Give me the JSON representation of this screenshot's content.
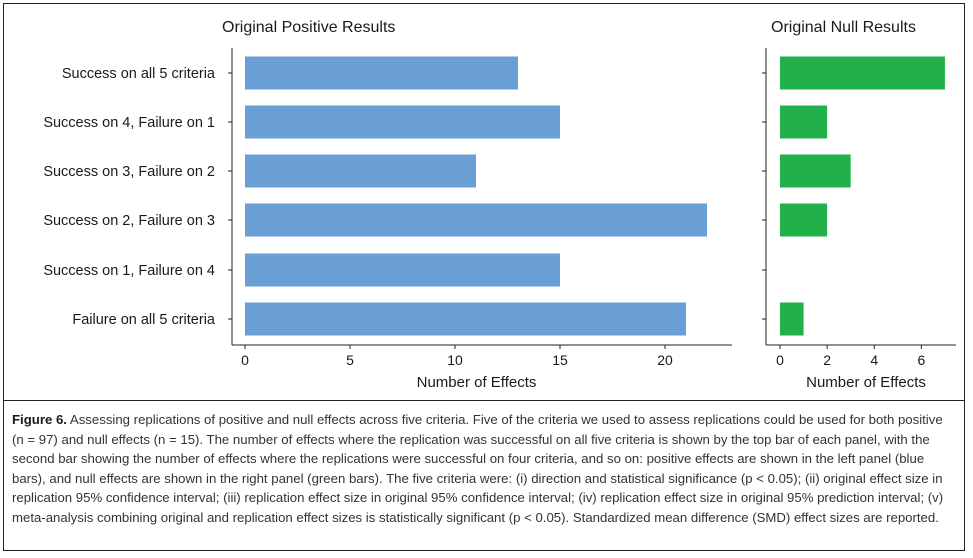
{
  "chart_data": [
    {
      "type": "bar",
      "orientation": "horizontal",
      "title": "Original Positive Results",
      "xlabel": "Number of Effects",
      "categories": [
        "Success on all 5 criteria",
        "Success on 4, Failure on 1",
        "Success on 3, Failure on 2",
        "Success on 2, Failure on 3",
        "Success on 1, Failure on 4",
        "Failure on all 5 criteria"
      ],
      "values": [
        13,
        15,
        11,
        22,
        15,
        21
      ],
      "xlim": [
        0,
        23
      ],
      "xticks": [
        0,
        5,
        10,
        15,
        20
      ],
      "color": "#6a9fd6",
      "grid": false
    },
    {
      "type": "bar",
      "orientation": "horizontal",
      "title": "Original Null Results",
      "xlabel": "Number of Effects",
      "categories": [
        "Success on all 5 criteria",
        "Success on 4, Failure on 1",
        "Success on 3, Failure on 2",
        "Success on 2, Failure on 3",
        "Success on 1, Failure on 4",
        "Failure on all 5 criteria"
      ],
      "values": [
        7,
        2,
        3,
        2,
        0,
        1
      ],
      "xlim": [
        0,
        7.3
      ],
      "xticks": [
        0,
        2,
        4,
        6
      ],
      "color": "#22b04b",
      "grid": false
    }
  ],
  "caption": {
    "label": "Figure 6.",
    "text": " Assessing replications of positive and null effects across five criteria. Five of the criteria we used to assess replications could be used for both positive (n = 97) and null effects (n = 15). The number of effects where the replication was successful on all five criteria is shown by the top bar of each panel, with the second bar showing the number of effects where the replications were successful on four criteria, and so on: positive effects are shown in the left panel (blue bars), and null effects are shown in the right panel (green bars). The five criteria were: (i) direction and statistical significance (p < 0.05); (ii) original effect size in replication 95% confidence interval; (iii) replication effect size in original 95% confidence interval; (iv) replication effect size in original 95% prediction interval; (v) meta-analysis combining original and replication effect sizes is statistically significant (p < 0.05). Standardized mean difference (SMD) effect sizes are reported."
  }
}
